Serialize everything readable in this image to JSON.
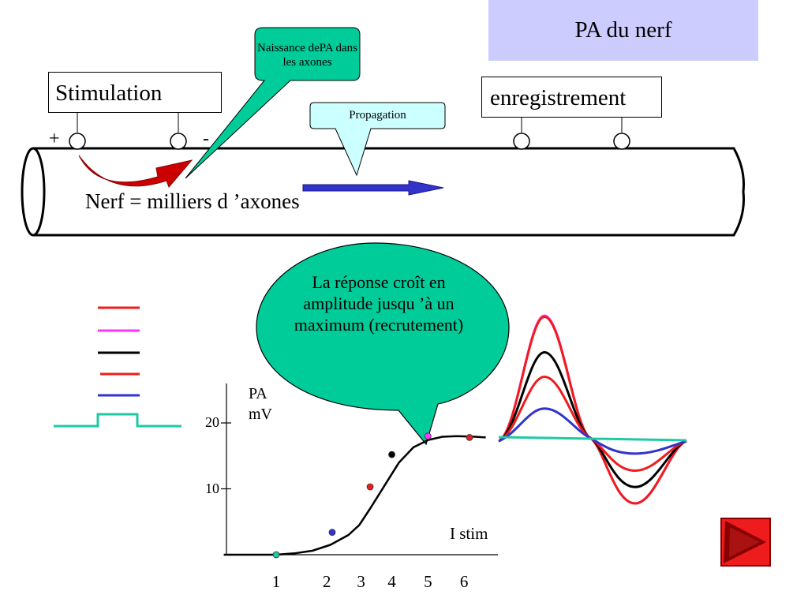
{
  "title": "PA du nerf",
  "stimulation_label": "Stimulation",
  "recording_label": "enregistrement",
  "sign_plus": "+",
  "sign_minus": "-",
  "callout_birth": "Naissance dePA dans les axones",
  "callout_propagation": "Propagation",
  "nerve_label": "Nerf = milliers d ’axones",
  "bubble_text": "La réponse croît en amplitude jusqu ’à un maximum (recrutement)",
  "legend_colors": [
    "#ee1c1c",
    "#ff33ff",
    "#000000",
    "#ee1c1c",
    "#3333cc",
    "#1fc9a3"
  ],
  "colors": {
    "title_bg": "#ccccff",
    "callout_green": "#00cc99",
    "callout_cyan": "#ccffff",
    "arrow_red": "#cc0000",
    "arrow_blue": "#3333cc",
    "button_red": "#ee1c1c"
  },
  "chart_data": {
    "type": "line",
    "ylabel": "PA mV",
    "xlabel": "I stim",
    "x_ticks": [
      "1",
      "2",
      "3",
      "4",
      "5",
      "6"
    ],
    "y_ticks": [
      "10",
      "20"
    ],
    "xlim": [
      0,
      6.9
    ],
    "ylim": [
      0,
      24
    ],
    "curve": [
      [
        -1.45,
        0
      ],
      [
        0,
        0
      ],
      [
        0.5,
        0.2
      ],
      [
        1,
        0.6
      ],
      [
        1.5,
        1.5
      ],
      [
        2,
        3
      ],
      [
        2.3,
        4.5
      ],
      [
        2.6,
        7
      ],
      [
        3,
        10.5
      ],
      [
        3.4,
        14
      ],
      [
        3.8,
        16.3
      ],
      [
        4.2,
        17.4
      ],
      [
        4.6,
        17.9
      ],
      [
        5,
        18
      ],
      [
        5.5,
        17.9
      ],
      [
        5.8,
        17.8
      ]
    ],
    "points": [
      {
        "x": 0,
        "y": 0,
        "color": "#1fc9a3"
      },
      {
        "x": 1.55,
        "y": 3.4,
        "color": "#3333cc"
      },
      {
        "x": 2.6,
        "y": 10.3,
        "color": "#ee1c1c"
      },
      {
        "x": 3.2,
        "y": 15.2,
        "color": "#000000"
      },
      {
        "x": 4.2,
        "y": 18.0,
        "color": "#ff33ff"
      },
      {
        "x": 5.35,
        "y": 17.8,
        "color": "#ee1c1c"
      }
    ]
  },
  "waveforms": [
    {
      "color": "#ff33ff",
      "peak": 1.0,
      "trough": 1.0
    },
    {
      "color": "#ee1c1c",
      "peak": 0.99,
      "trough": 1.0
    },
    {
      "color": "#000000",
      "peak": 0.7,
      "trough": 0.75
    },
    {
      "color": "#ee1c1c",
      "peak": 0.5,
      "trough": 0.5
    },
    {
      "color": "#3333cc",
      "peak": 0.24,
      "trough": 0.24
    },
    {
      "color": "#1fc9a3",
      "peak": 0,
      "trough": 0
    }
  ]
}
